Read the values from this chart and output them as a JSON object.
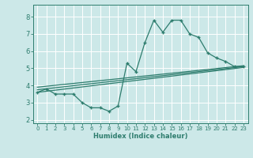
{
  "main_line_x": [
    0,
    1,
    2,
    3,
    4,
    5,
    6,
    7,
    8,
    9,
    10,
    11,
    12,
    13,
    14,
    15,
    16,
    17,
    18,
    19,
    20,
    21,
    22,
    23
  ],
  "main_line_y": [
    3.6,
    3.8,
    3.5,
    3.5,
    3.5,
    3.0,
    2.7,
    2.7,
    2.5,
    2.8,
    5.3,
    4.8,
    6.5,
    7.8,
    7.1,
    7.8,
    7.8,
    7.0,
    6.8,
    5.9,
    5.6,
    5.4,
    5.1,
    5.1
  ],
  "reg_line1_x": [
    0,
    23
  ],
  "reg_line1_y": [
    3.6,
    5.05
  ],
  "reg_line2_x": [
    0,
    23
  ],
  "reg_line2_y": [
    3.75,
    5.1
  ],
  "reg_line3_x": [
    0,
    23
  ],
  "reg_line3_y": [
    3.9,
    5.15
  ],
  "line_color": "#2e7d6e",
  "bg_color": "#cce8e8",
  "grid_color": "#ffffff",
  "xlabel": "Humidex (Indice chaleur)",
  "xlim": [
    -0.5,
    23.5
  ],
  "ylim": [
    1.8,
    8.7
  ],
  "yticks": [
    2,
    3,
    4,
    5,
    6,
    7,
    8
  ],
  "xticks": [
    0,
    1,
    2,
    3,
    4,
    5,
    6,
    7,
    8,
    9,
    10,
    11,
    12,
    13,
    14,
    15,
    16,
    17,
    18,
    19,
    20,
    21,
    22,
    23
  ],
  "xlabel_fontsize": 6.0,
  "xtick_fontsize": 5.0,
  "ytick_fontsize": 6.0
}
